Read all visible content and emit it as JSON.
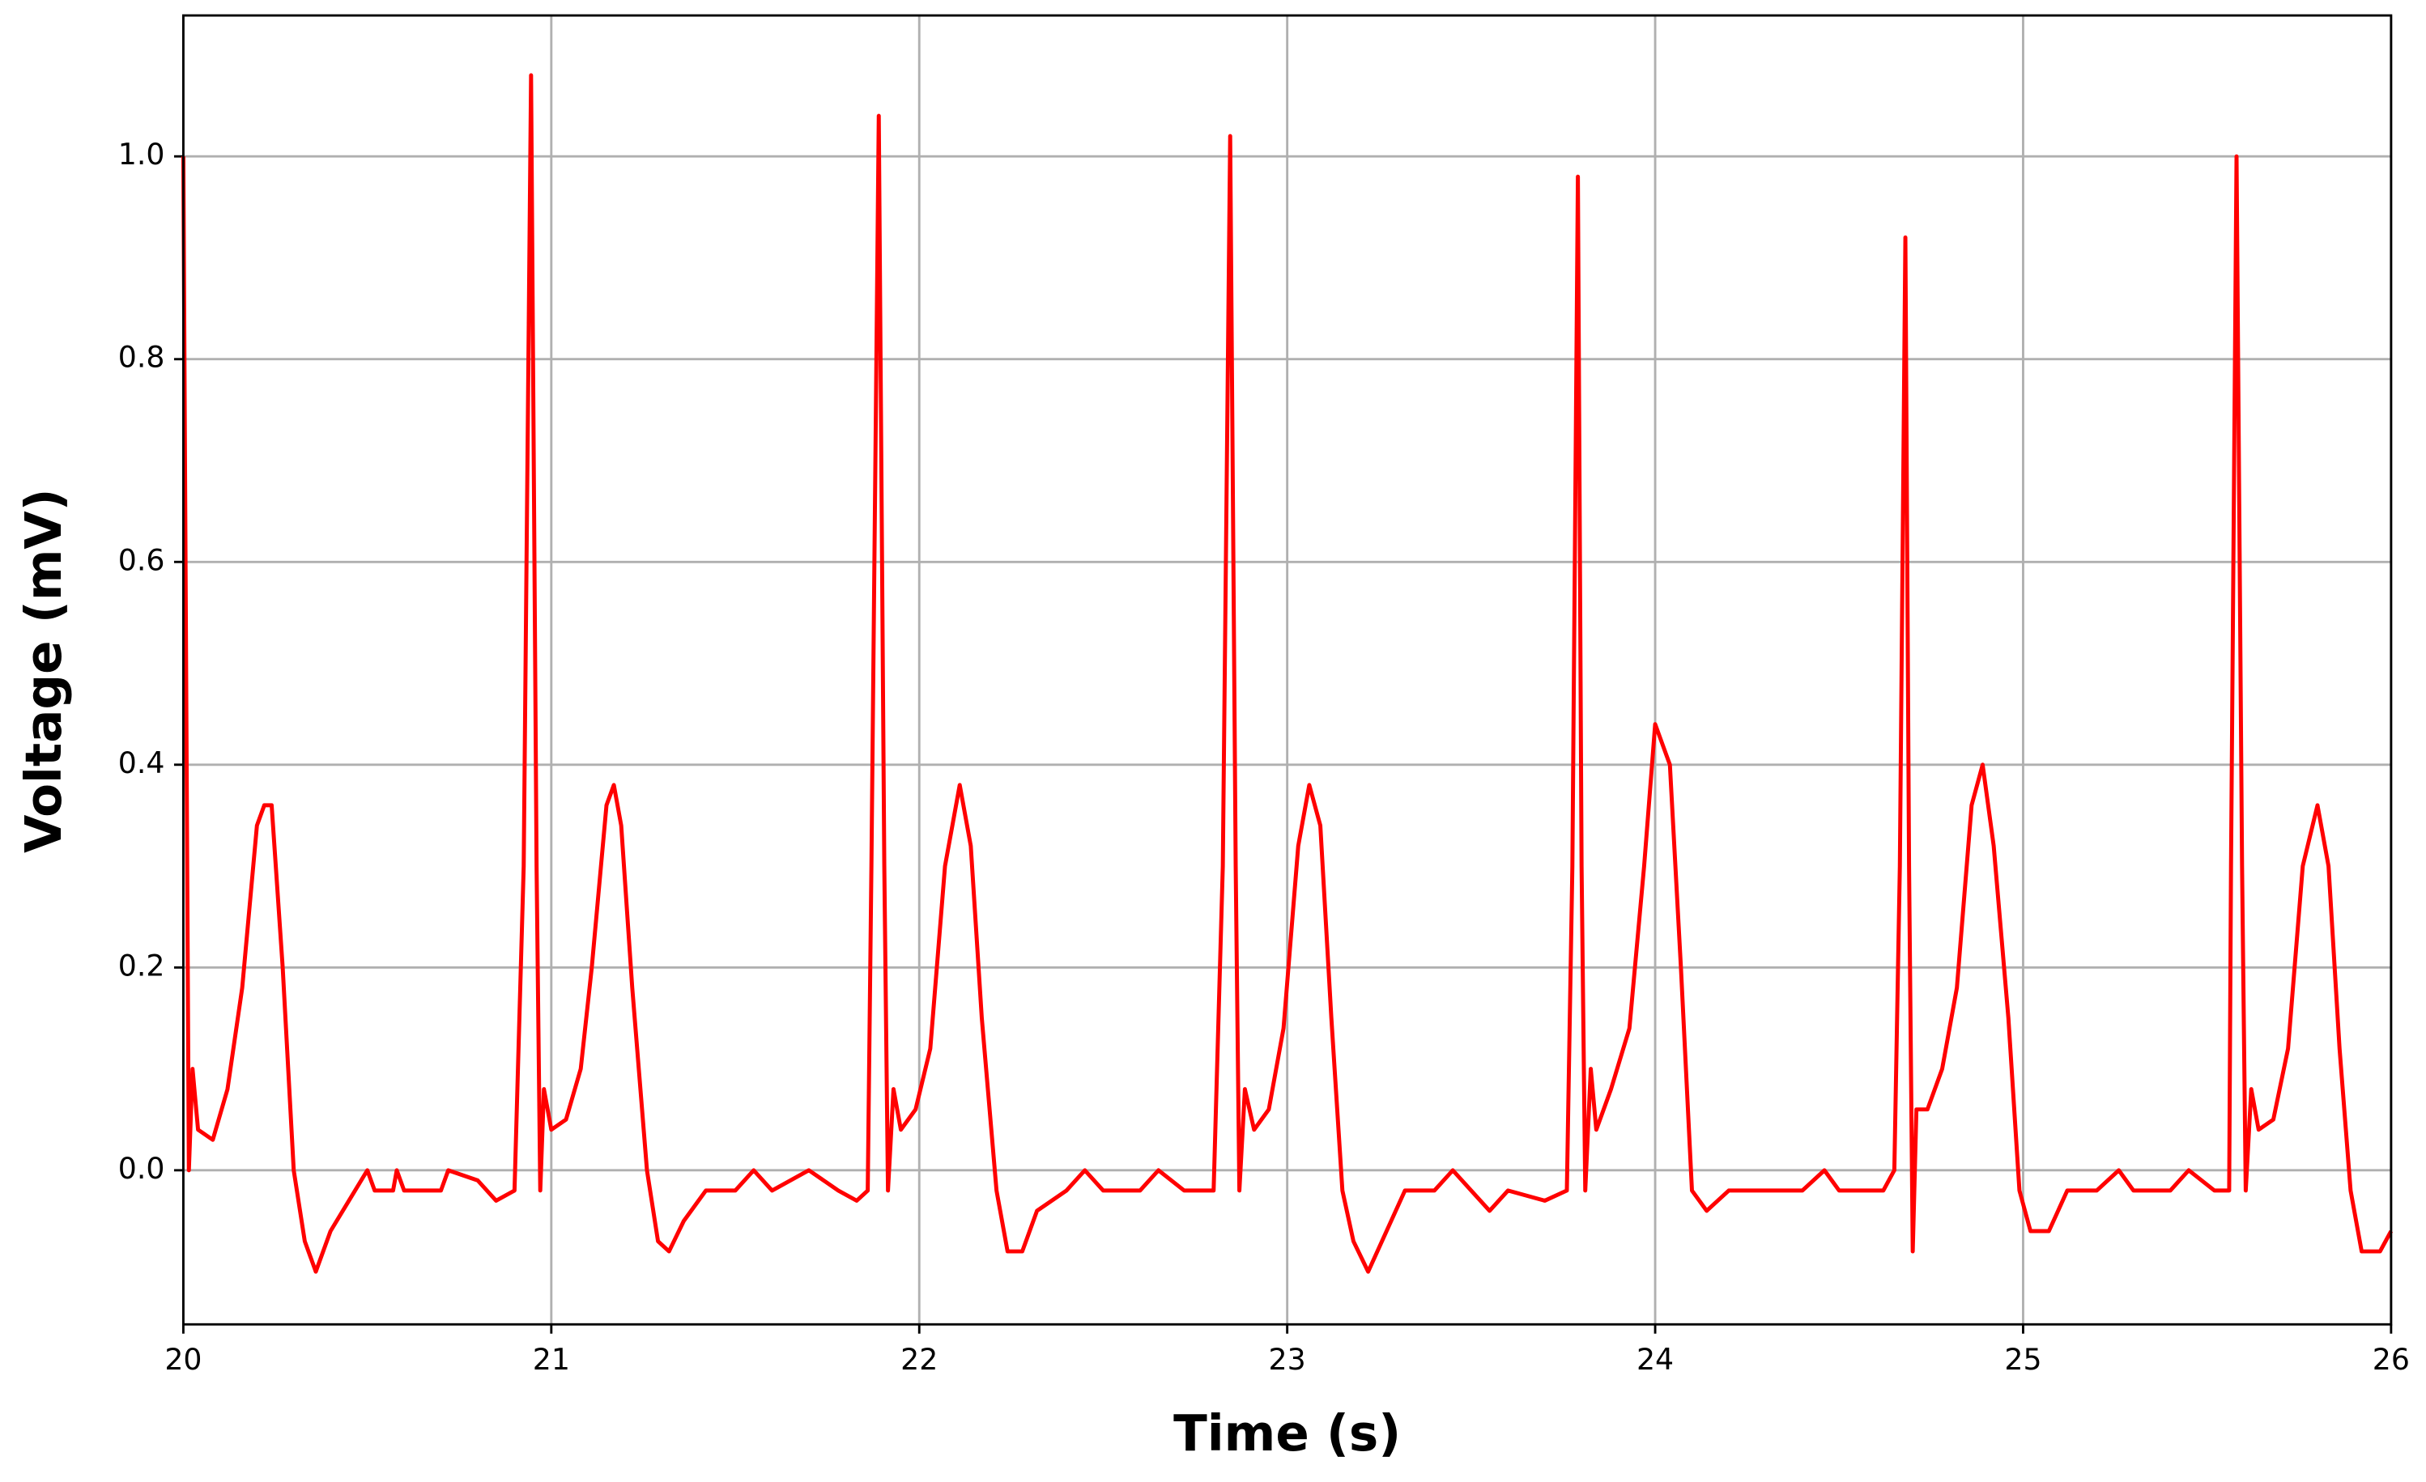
{
  "chart_data": {
    "type": "line",
    "x_label": "Time (s)",
    "y_label": "Voltage (mV)",
    "xlim": [
      20,
      26
    ],
    "ylim": [
      -0.152,
      1.139
    ],
    "xticks": [
      20,
      21,
      22,
      23,
      24,
      25,
      26
    ],
    "yticks": [
      {
        "value": 0,
        "label": "0.0"
      },
      0.2,
      0.4,
      0.6,
      0.8,
      {
        "value": 1,
        "label": "1.0"
      }
    ],
    "grid": true,
    "x": [
      20.0,
      20.015,
      20.025,
      20.04,
      20.08,
      20.12,
      20.16,
      20.2,
      20.22,
      20.24,
      20.27,
      20.3,
      20.33,
      20.36,
      20.4,
      20.45,
      20.5,
      20.52,
      20.57,
      20.58,
      20.6,
      20.7,
      20.72,
      20.8,
      20.85,
      20.9,
      20.925,
      20.945,
      20.96,
      20.97,
      20.98,
      21.0,
      21.04,
      21.08,
      21.11,
      21.15,
      21.17,
      21.19,
      21.22,
      21.26,
      21.29,
      21.32,
      21.36,
      21.42,
      21.5,
      21.55,
      21.6,
      21.7,
      21.78,
      21.83,
      21.86,
      21.87,
      21.89,
      21.905,
      21.915,
      21.93,
      21.95,
      21.99,
      22.03,
      22.07,
      22.11,
      22.14,
      22.17,
      22.21,
      22.24,
      22.28,
      22.32,
      22.4,
      22.45,
      22.5,
      22.6,
      22.65,
      22.72,
      22.8,
      22.825,
      22.845,
      22.86,
      22.87,
      22.885,
      22.91,
      22.95,
      22.99,
      23.03,
      23.06,
      23.09,
      23.12,
      23.15,
      23.18,
      23.22,
      23.27,
      23.32,
      23.4,
      23.45,
      23.5,
      23.55,
      23.6,
      23.7,
      23.76,
      23.775,
      23.79,
      23.8,
      23.81,
      23.825,
      23.84,
      23.88,
      23.93,
      23.97,
      24.0,
      24.04,
      24.07,
      24.1,
      24.14,
      24.2,
      24.3,
      24.4,
      24.46,
      24.5,
      24.62,
      24.65,
      24.665,
      24.68,
      24.69,
      24.7,
      24.71,
      24.74,
      24.78,
      24.82,
      24.86,
      24.89,
      24.92,
      24.96,
      24.99,
      25.02,
      25.07,
      25.12,
      25.2,
      25.26,
      25.3,
      25.4,
      25.45,
      25.52,
      25.56,
      25.565,
      25.58,
      25.595,
      25.605,
      25.62,
      25.64,
      25.68,
      25.72,
      25.76,
      25.8,
      25.83,
      25.86,
      25.89,
      25.92,
      25.97,
      26.0
    ],
    "series": [
      {
        "color": "#ff0000",
        "values": [
          1.0,
          0.0,
          0.1,
          0.04,
          0.03,
          0.08,
          0.18,
          0.34,
          0.36,
          0.36,
          0.2,
          0.0,
          -0.07,
          -0.1,
          -0.06,
          -0.03,
          0.0,
          -0.02,
          -0.02,
          0.0,
          -0.02,
          -0.02,
          0.0,
          -0.01,
          -0.03,
          -0.02,
          0.3,
          1.08,
          0.3,
          -0.02,
          0.08,
          0.04,
          0.05,
          0.1,
          0.2,
          0.36,
          0.38,
          0.34,
          0.18,
          0.0,
          -0.07,
          -0.08,
          -0.05,
          -0.02,
          -0.02,
          0.0,
          -0.02,
          0.0,
          -0.02,
          -0.03,
          -0.02,
          0.3,
          1.04,
          0.3,
          -0.02,
          0.08,
          0.04,
          0.06,
          0.12,
          0.3,
          0.38,
          0.32,
          0.15,
          -0.02,
          -0.08,
          -0.08,
          -0.04,
          -0.02,
          0.0,
          -0.02,
          -0.02,
          0.0,
          -0.02,
          -0.02,
          0.3,
          1.02,
          0.3,
          -0.02,
          0.08,
          0.04,
          0.06,
          0.14,
          0.32,
          0.38,
          0.34,
          0.15,
          -0.02,
          -0.07,
          -0.1,
          -0.06,
          -0.02,
          -0.02,
          0.0,
          -0.02,
          -0.04,
          -0.02,
          -0.03,
          -0.02,
          0.3,
          0.98,
          0.3,
          -0.02,
          0.1,
          0.04,
          0.08,
          0.14,
          0.3,
          0.44,
          0.4,
          0.2,
          -0.02,
          -0.04,
          -0.02,
          -0.02,
          -0.02,
          0.0,
          -0.02,
          -0.02,
          0.0,
          0.3,
          0.92,
          0.3,
          -0.08,
          0.06,
          0.06,
          0.1,
          0.18,
          0.36,
          0.4,
          0.32,
          0.15,
          -0.02,
          -0.06,
          -0.06,
          -0.02,
          -0.02,
          0.0,
          -0.02,
          -0.02,
          0.0,
          -0.02,
          -0.02,
          0.3,
          1.0,
          0.3,
          -0.02,
          0.08,
          0.04,
          0.05,
          0.12,
          0.3,
          0.36,
          0.3,
          0.12,
          -0.02,
          -0.08,
          -0.08,
          -0.06
        ]
      }
    ]
  }
}
